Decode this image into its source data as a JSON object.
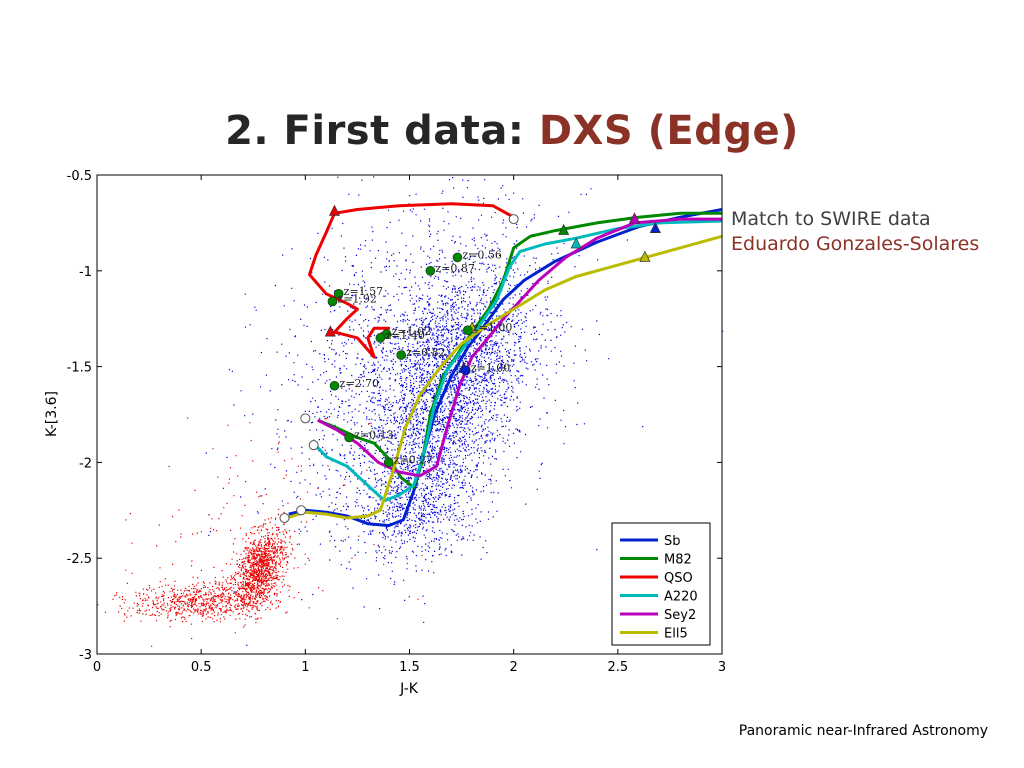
{
  "slide": {
    "title_prefix": "2. First data: ",
    "title_accent": "DXS (Edge)",
    "note_line1": "Match to SWIRE data",
    "note_line2": "Eduardo Gonzales-Solares",
    "footer": "Panoramic near-Infrared Astronomy",
    "accent_color": "#8a3226"
  },
  "chart_data": {
    "type": "scatter",
    "xlabel": "J-K",
    "ylabel": "K-[3.6]",
    "xlim": [
      0,
      3
    ],
    "ylim": [
      -3,
      -0.5
    ],
    "y_inverted": true,
    "x_ticks": [
      "0",
      "0.5",
      "1",
      "1.5",
      "2",
      "2.5",
      "3"
    ],
    "y_ticks": [
      "-0.5",
      "-1",
      "-1.5",
      "-2",
      "-2.5",
      "-3"
    ],
    "legend_position": "lower-right",
    "point_clouds": [
      {
        "color": "#0000dd",
        "description": "sources",
        "centers": [
          [
            1.75,
            -1.7
          ],
          [
            1.55,
            -2.15
          ],
          [
            1.6,
            -1.3
          ]
        ]
      },
      {
        "color": "#ee0000",
        "description": "stars",
        "centers": [
          [
            0.8,
            -2.55
          ],
          [
            0.45,
            -2.72
          ]
        ]
      }
    ],
    "series": [
      {
        "name": "Sb",
        "color": "#0022cc",
        "points": [
          [
            0.92,
            -2.27
          ],
          [
            1.0,
            -2.25
          ],
          [
            1.1,
            -2.26
          ],
          [
            1.2,
            -2.28
          ],
          [
            1.3,
            -2.32
          ],
          [
            1.4,
            -2.33
          ],
          [
            1.47,
            -2.3
          ],
          [
            1.52,
            -2.15
          ],
          [
            1.57,
            -1.95
          ],
          [
            1.62,
            -1.75
          ],
          [
            1.7,
            -1.55
          ],
          [
            1.78,
            -1.4
          ],
          [
            1.85,
            -1.3
          ],
          [
            1.95,
            -1.15
          ],
          [
            2.05,
            -1.05
          ],
          [
            2.2,
            -0.95
          ],
          [
            2.4,
            -0.85
          ],
          [
            2.6,
            -0.77
          ],
          [
            2.8,
            -0.72
          ],
          [
            3.0,
            -0.68
          ]
        ]
      },
      {
        "name": "M82",
        "color": "#008800",
        "points": [
          [
            1.06,
            -1.78
          ],
          [
            1.15,
            -1.82
          ],
          [
            1.25,
            -1.87
          ],
          [
            1.33,
            -1.9
          ],
          [
            1.4,
            -1.98
          ],
          [
            1.46,
            -2.08
          ],
          [
            1.52,
            -2.13
          ],
          [
            1.56,
            -2.0
          ],
          [
            1.6,
            -1.75
          ],
          [
            1.66,
            -1.55
          ],
          [
            1.74,
            -1.42
          ],
          [
            1.8,
            -1.32
          ],
          [
            1.88,
            -1.2
          ],
          [
            1.95,
            -1.05
          ],
          [
            2.0,
            -0.88
          ],
          [
            2.08,
            -0.82
          ],
          [
            2.2,
            -0.79
          ],
          [
            2.4,
            -0.75
          ],
          [
            2.6,
            -0.72
          ],
          [
            2.8,
            -0.7
          ],
          [
            3.0,
            -0.7
          ]
        ]
      },
      {
        "name": "QSO",
        "color": "#ee0000",
        "points": [
          [
            2.0,
            -0.72
          ],
          [
            1.9,
            -0.66
          ],
          [
            1.7,
            -0.65
          ],
          [
            1.45,
            -0.66
          ],
          [
            1.25,
            -0.68
          ],
          [
            1.14,
            -0.7
          ],
          [
            1.1,
            -0.8
          ],
          [
            1.05,
            -0.92
          ],
          [
            1.02,
            -1.02
          ],
          [
            1.1,
            -1.12
          ],
          [
            1.2,
            -1.17
          ],
          [
            1.25,
            -1.2
          ],
          [
            1.2,
            -1.25
          ],
          [
            1.14,
            -1.32
          ],
          [
            1.25,
            -1.35
          ],
          [
            1.33,
            -1.45
          ],
          [
            1.3,
            -1.35
          ],
          [
            1.33,
            -1.3
          ],
          [
            1.4,
            -1.3
          ],
          [
            1.37,
            -1.33
          ]
        ]
      },
      {
        "name": "A220",
        "color": "#00bbbb",
        "points": [
          [
            1.04,
            -1.9
          ],
          [
            1.1,
            -1.97
          ],
          [
            1.2,
            -2.02
          ],
          [
            1.3,
            -2.12
          ],
          [
            1.38,
            -2.2
          ],
          [
            1.45,
            -2.17
          ],
          [
            1.52,
            -2.12
          ],
          [
            1.57,
            -1.95
          ],
          [
            1.62,
            -1.7
          ],
          [
            1.68,
            -1.52
          ],
          [
            1.76,
            -1.4
          ],
          [
            1.84,
            -1.28
          ],
          [
            1.92,
            -1.15
          ],
          [
            1.98,
            -0.98
          ],
          [
            2.03,
            -0.9
          ],
          [
            2.15,
            -0.86
          ],
          [
            2.3,
            -0.83
          ],
          [
            2.5,
            -0.78
          ],
          [
            2.7,
            -0.75
          ],
          [
            3.0,
            -0.74
          ]
        ]
      },
      {
        "name": "Sey2",
        "color": "#bb00bb",
        "points": [
          [
            1.06,
            -1.78
          ],
          [
            1.15,
            -1.83
          ],
          [
            1.25,
            -1.9
          ],
          [
            1.35,
            -2.0
          ],
          [
            1.45,
            -2.05
          ],
          [
            1.55,
            -2.07
          ],
          [
            1.63,
            -2.02
          ],
          [
            1.68,
            -1.82
          ],
          [
            1.74,
            -1.6
          ],
          [
            1.8,
            -1.45
          ],
          [
            1.87,
            -1.36
          ],
          [
            1.95,
            -1.25
          ],
          [
            2.02,
            -1.17
          ],
          [
            2.12,
            -1.05
          ],
          [
            2.25,
            -0.93
          ],
          [
            2.4,
            -0.83
          ],
          [
            2.58,
            -0.75
          ],
          [
            2.8,
            -0.73
          ],
          [
            3.0,
            -0.73
          ]
        ]
      },
      {
        "name": "Ell5",
        "color": "#bbbb00",
        "points": [
          [
            0.91,
            -2.29
          ],
          [
            1.0,
            -2.26
          ],
          [
            1.1,
            -2.27
          ],
          [
            1.2,
            -2.29
          ],
          [
            1.3,
            -2.28
          ],
          [
            1.36,
            -2.25
          ],
          [
            1.42,
            -2.05
          ],
          [
            1.48,
            -1.82
          ],
          [
            1.55,
            -1.65
          ],
          [
            1.65,
            -1.5
          ],
          [
            1.75,
            -1.38
          ],
          [
            1.88,
            -1.28
          ],
          [
            2.0,
            -1.2
          ],
          [
            2.15,
            -1.1
          ],
          [
            2.3,
            -1.03
          ],
          [
            2.5,
            -0.97
          ],
          [
            2.7,
            -0.91
          ],
          [
            3.0,
            -0.82
          ]
        ]
      }
    ],
    "annotations": [
      {
        "text": "z=0.56",
        "x": 1.73,
        "y": -0.93,
        "color": "#008800"
      },
      {
        "text": "z=0.87",
        "x": 1.6,
        "y": -1.0,
        "color": "#008800"
      },
      {
        "text": "z=1.57",
        "x": 1.16,
        "y": -1.12,
        "color": "#008800"
      },
      {
        "text": "z=1.92",
        "x": 1.13,
        "y": -1.16,
        "color": "#008800"
      },
      {
        "text": "z=1.02",
        "x": 1.39,
        "y": -1.33,
        "color": "#008800"
      },
      {
        "text": "z=1.40",
        "x": 1.36,
        "y": -1.35,
        "color": "#008800"
      },
      {
        "text": "z=0.82",
        "x": 1.46,
        "y": -1.44,
        "color": "#008800"
      },
      {
        "text": "z=2.70",
        "x": 1.14,
        "y": -1.6,
        "color": "#008800"
      },
      {
        "text": "z=0.13",
        "x": 1.21,
        "y": -1.87,
        "color": "#008800"
      },
      {
        "text": "z=0.27",
        "x": 1.4,
        "y": -2.0,
        "color": "#008800"
      },
      {
        "text": "z=1.00",
        "x": 1.78,
        "y": -1.31,
        "color": "#008800"
      },
      {
        "text": "z=1.00",
        "x": 1.77,
        "y": -1.52,
        "color": "#0022cc"
      }
    ],
    "triangle_markers": [
      {
        "x": 1.14,
        "y": -0.69,
        "color": "#ee0000"
      },
      {
        "x": 1.12,
        "y": -1.32,
        "color": "#ee0000"
      },
      {
        "x": 2.24,
        "y": -0.79,
        "color": "#008800"
      },
      {
        "x": 2.3,
        "y": -0.86,
        "color": "#00bbbb"
      },
      {
        "x": 2.58,
        "y": -0.73,
        "color": "#bb00bb"
      },
      {
        "x": 2.63,
        "y": -0.93,
        "color": "#bbbb00"
      },
      {
        "x": 2.68,
        "y": -0.78,
        "color": "#0022cc"
      },
      {
        "x": 1.8,
        "y": -1.3,
        "color": "#bbbb00"
      },
      {
        "x": 1.76,
        "y": -1.51,
        "color": "#0022cc"
      }
    ],
    "open_markers": [
      {
        "x": 2.0,
        "y": -0.73
      },
      {
        "x": 1.0,
        "y": -1.77
      },
      {
        "x": 1.04,
        "y": -1.91
      },
      {
        "x": 0.98,
        "y": -2.25
      },
      {
        "x": 0.9,
        "y": -2.29
      }
    ]
  }
}
